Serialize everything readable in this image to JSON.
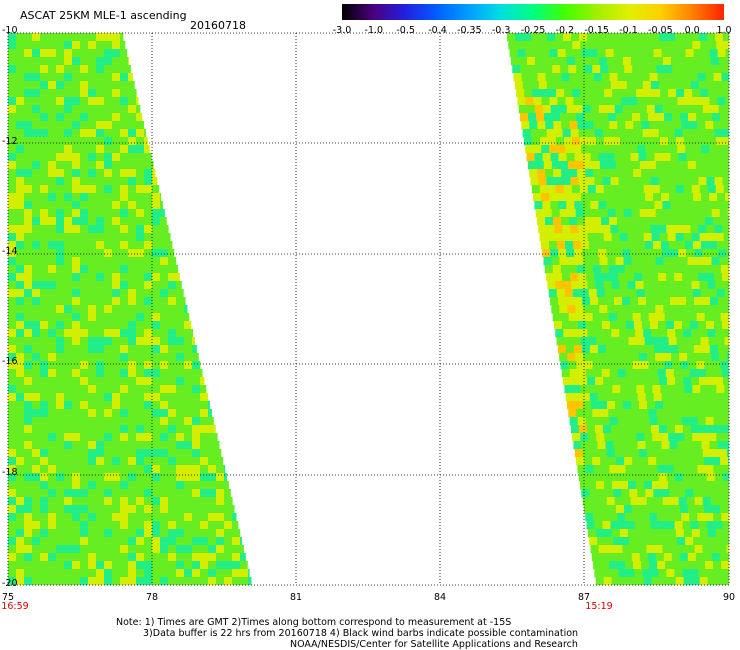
{
  "header": {
    "title": "ASCAT 25KM MLE-1 ascending",
    "date": "20160718"
  },
  "colorbar": {
    "labels": [
      "-3.0",
      "-1.0",
      "-0.5",
      "-0.4",
      "-0.35",
      "-0.3",
      "-0.25",
      "-0.2",
      "-0.15",
      "-0.1",
      "-0.05",
      "0.0",
      "1.0"
    ],
    "colors": [
      "#000000",
      "#4b0082",
      "#2020e0",
      "#0060ff",
      "#00a0ff",
      "#00e0e0",
      "#00ff80",
      "#40ff00",
      "#a0f000",
      "#e0f000",
      "#ffd000",
      "#ff8000",
      "#ff2000"
    ]
  },
  "map": {
    "lon_ticks": [
      "75",
      "78",
      "81",
      "84",
      "87",
      "90"
    ],
    "lat_ticks": [
      "-10",
      "-12",
      "-14",
      "-16",
      "-18",
      "-20"
    ],
    "time_left": "16:59",
    "time_right": "15:19",
    "colors": {
      "main": "#66ee22",
      "yellowish": "#d4ee00",
      "cyanish": "#22ee88",
      "orange": "#ffc400"
    }
  },
  "notes": {
    "line1": "Note: 1) Times are GMT 2)Times along bottom correspond to measurement at -15S",
    "line2": "3)Data buffer is 22 hrs from 20160718 4) Black wind barbs indicate possible contamination",
    "line3": "NOAA/NESDIS/Center for Satellite Applications and Research"
  }
}
